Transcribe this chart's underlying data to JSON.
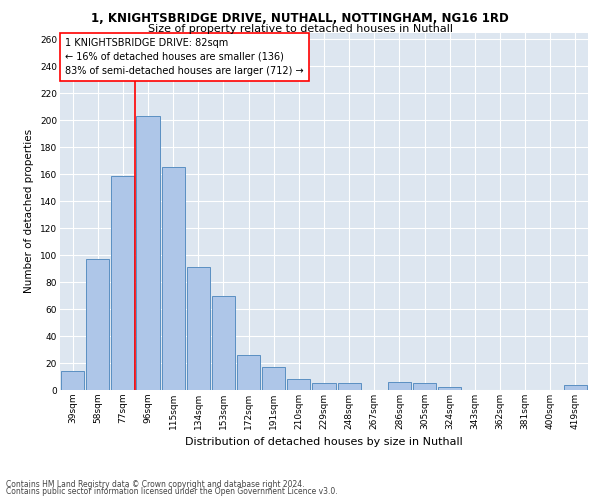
{
  "title1": "1, KNIGHTSBRIDGE DRIVE, NUTHALL, NOTTINGHAM, NG16 1RD",
  "title2": "Size of property relative to detached houses in Nuthall",
  "xlabel": "Distribution of detached houses by size in Nuthall",
  "ylabel": "Number of detached properties",
  "categories": [
    "39sqm",
    "58sqm",
    "77sqm",
    "96sqm",
    "115sqm",
    "134sqm",
    "153sqm",
    "172sqm",
    "191sqm",
    "210sqm",
    "229sqm",
    "248sqm",
    "267sqm",
    "286sqm",
    "305sqm",
    "324sqm",
    "343sqm",
    "362sqm",
    "381sqm",
    "400sqm",
    "419sqm"
  ],
  "values": [
    14,
    97,
    159,
    203,
    165,
    91,
    70,
    26,
    17,
    8,
    5,
    5,
    0,
    6,
    5,
    2,
    0,
    0,
    0,
    0,
    4
  ],
  "bar_color": "#aec6e8",
  "bar_edge_color": "#5a8fc2",
  "background_color": "#dde6f0",
  "red_line_x": 2.5,
  "annotation_title": "1 KNIGHTSBRIDGE DRIVE: 82sqm",
  "annotation_line1": "← 16% of detached houses are smaller (136)",
  "annotation_line2": "83% of semi-detached houses are larger (712) →",
  "footer1": "Contains HM Land Registry data © Crown copyright and database right 2024.",
  "footer2": "Contains public sector information licensed under the Open Government Licence v3.0.",
  "ylim": [
    0,
    265
  ],
  "yticks": [
    0,
    20,
    40,
    60,
    80,
    100,
    120,
    140,
    160,
    180,
    200,
    220,
    240,
    260
  ],
  "title1_fontsize": 8.5,
  "title2_fontsize": 8,
  "ylabel_fontsize": 7.5,
  "xlabel_fontsize": 8,
  "tick_fontsize": 6.5,
  "annotation_fontsize": 7,
  "footer_fontsize": 5.5
}
